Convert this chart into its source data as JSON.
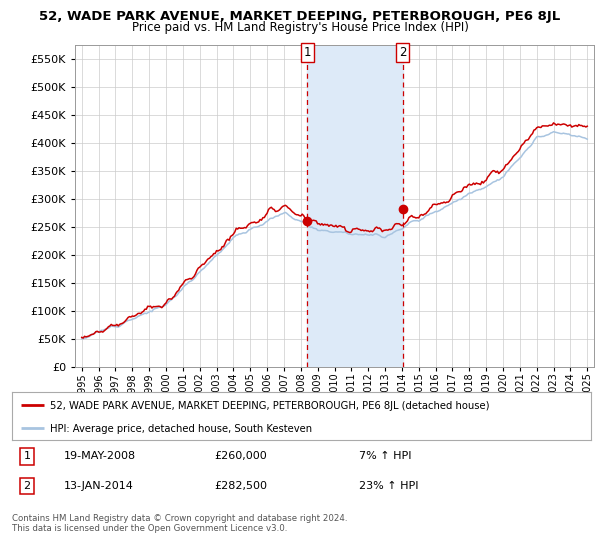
{
  "title": "52, WADE PARK AVENUE, MARKET DEEPING, PETERBOROUGH, PE6 8JL",
  "subtitle": "Price paid vs. HM Land Registry's House Price Index (HPI)",
  "legend_line1": "52, WADE PARK AVENUE, MARKET DEEPING, PETERBOROUGH, PE6 8JL (detached house)",
  "legend_line2": "HPI: Average price, detached house, South Kesteven",
  "transaction1_date": "19-MAY-2008",
  "transaction1_price": "£260,000",
  "transaction1_hpi": "7% ↑ HPI",
  "transaction2_date": "13-JAN-2014",
  "transaction2_price": "£282,500",
  "transaction2_hpi": "23% ↑ HPI",
  "footnote": "Contains HM Land Registry data © Crown copyright and database right 2024.\nThis data is licensed under the Open Government Licence v3.0.",
  "ylim_min": 0,
  "ylim_max": 575000,
  "yticks": [
    0,
    50000,
    100000,
    150000,
    200000,
    250000,
    300000,
    350000,
    400000,
    450000,
    500000,
    550000
  ],
  "hpi_color": "#a8c4e0",
  "price_color": "#cc0000",
  "shade_color": "#ddeaf8",
  "vline_color": "#cc0000",
  "bg_color": "#ffffff",
  "grid_color": "#cccccc",
  "marker1_x": 2008.38,
  "marker1_y": 260000,
  "marker2_x": 2014.04,
  "marker2_y": 282500,
  "vline1_x": 2008.38,
  "vline2_x": 2014.04,
  "xlim_min": 1994.6,
  "xlim_max": 2025.4
}
